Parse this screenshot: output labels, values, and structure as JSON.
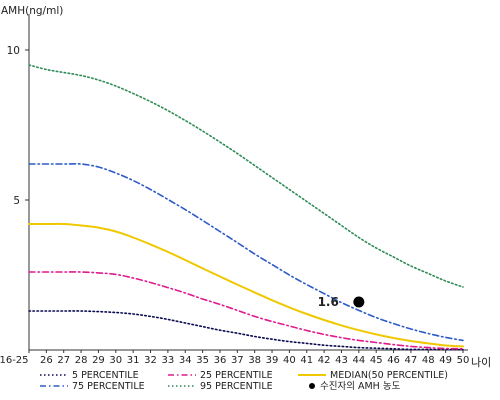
{
  "chart_data": {
    "type": "line",
    "ylabel": "AMH(ng/ml)",
    "xlabel": "나이",
    "y_ticks": [
      10,
      5
    ],
    "ylim": [
      0,
      11
    ],
    "categories": [
      "16-25",
      "26",
      "27",
      "28",
      "29",
      "30",
      "31",
      "32",
      "33",
      "34",
      "35",
      "36",
      "37",
      "38",
      "39",
      "40",
      "41",
      "42",
      "43",
      "44",
      "45",
      "46",
      "47",
      "48",
      "49",
      "50"
    ],
    "series": [
      {
        "name": "5 PERCENTILE",
        "color": "#0a0a50",
        "dash": "dot",
        "values": [
          1.3,
          1.3,
          1.3,
          1.3,
          1.28,
          1.25,
          1.2,
          1.12,
          1.02,
          0.9,
          0.78,
          0.66,
          0.56,
          0.45,
          0.36,
          0.28,
          0.22,
          0.16,
          0.12,
          0.08,
          0.06,
          0.04,
          0.02,
          0.02,
          0.01,
          0.01
        ]
      },
      {
        "name": "25 PERCENTILE",
        "color": "#e0198c",
        "dash": "dashdot",
        "values": [
          2.6,
          2.6,
          2.6,
          2.6,
          2.57,
          2.52,
          2.4,
          2.25,
          2.08,
          1.9,
          1.7,
          1.52,
          1.32,
          1.12,
          0.95,
          0.8,
          0.65,
          0.52,
          0.41,
          0.32,
          0.25,
          0.18,
          0.12,
          0.08,
          0.05,
          0.04
        ]
      },
      {
        "name": "MEDIAN(50 PERCENTILE)",
        "color": "#f0c800",
        "dash": "solid",
        "values": [
          4.2,
          4.2,
          4.2,
          4.15,
          4.08,
          3.95,
          3.75,
          3.52,
          3.27,
          3.0,
          2.72,
          2.45,
          2.18,
          1.92,
          1.66,
          1.42,
          1.2,
          1.0,
          0.82,
          0.66,
          0.52,
          0.4,
          0.3,
          0.22,
          0.15,
          0.12
        ]
      },
      {
        "name": "75 PERCENTILE",
        "color": "#2d5bc7",
        "dash": "dashdot",
        "values": [
          6.2,
          6.2,
          6.2,
          6.2,
          6.1,
          5.9,
          5.65,
          5.35,
          5.02,
          4.68,
          4.32,
          3.95,
          3.58,
          3.2,
          2.85,
          2.5,
          2.18,
          1.88,
          1.58,
          1.32,
          1.08,
          0.88,
          0.7,
          0.55,
          0.42,
          0.32
        ]
      },
      {
        "name": "95 PERCENTILE",
        "color": "#2e8b57",
        "dash": "dot",
        "values": [
          9.5,
          9.35,
          9.25,
          9.15,
          9.0,
          8.8,
          8.55,
          8.28,
          7.98,
          7.65,
          7.3,
          6.93,
          6.55,
          6.15,
          5.75,
          5.35,
          4.95,
          4.55,
          4.15,
          3.75,
          3.4,
          3.1,
          2.8,
          2.55,
          2.3,
          2.1
        ]
      }
    ],
    "marker": {
      "name": "수진자의 AMH 농도",
      "x": "44",
      "y": 1.6,
      "label": "1.6",
      "color": "#000000"
    },
    "grid": false,
    "legend_position": "bottom"
  }
}
